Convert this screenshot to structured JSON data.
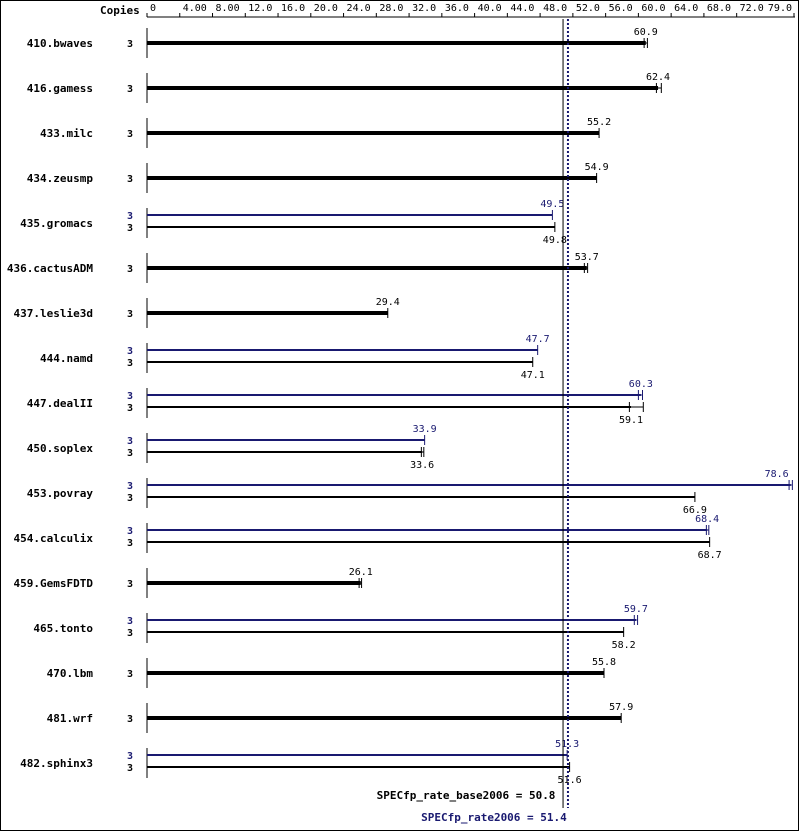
{
  "chart_data": {
    "type": "bar",
    "copies_header": "Copies",
    "x_ticks": [
      "0",
      "4.00",
      "8.00",
      "12.0",
      "16.0",
      "20.0",
      "24.0",
      "28.0",
      "32.0",
      "36.0",
      "40.0",
      "44.0",
      "48.0",
      "52.0",
      "56.0",
      "60.0",
      "64.0",
      "68.0",
      "72.0",
      "79.0"
    ],
    "xlim": [
      0,
      79.0
    ],
    "colors": {
      "base": "#000000",
      "peak": "#191970"
    },
    "benchmarks": [
      {
        "name": "410.bwaves",
        "base_copies": "3",
        "base": 60.9,
        "base_label": "60.9",
        "base_range": [
          60.7,
          61.1
        ]
      },
      {
        "name": "416.gamess",
        "base_copies": "3",
        "base": 62.4,
        "base_label": "62.4",
        "base_range": [
          62.2,
          62.8
        ]
      },
      {
        "name": "433.milc",
        "base_copies": "3",
        "base": 55.2,
        "base_label": "55.2"
      },
      {
        "name": "434.zeusmp",
        "base_copies": "3",
        "base": 54.9,
        "base_label": "54.9"
      },
      {
        "name": "435.gromacs",
        "peak_copies": "3",
        "peak": 49.5,
        "peak_label": "49.5",
        "base_copies": "3",
        "base": 49.8,
        "base_label": "49.8"
      },
      {
        "name": "436.cactusADM",
        "base_copies": "3",
        "base": 53.7,
        "base_label": "53.7",
        "base_range": [
          53.4,
          53.8
        ]
      },
      {
        "name": "437.leslie3d",
        "base_copies": "3",
        "base": 29.4,
        "base_label": "29.4"
      },
      {
        "name": "444.namd",
        "peak_copies": "3",
        "peak": 47.7,
        "peak_label": "47.7",
        "base_copies": "3",
        "base": 47.1,
        "base_label": "47.1"
      },
      {
        "name": "447.dealII",
        "peak_copies": "3",
        "peak": 60.3,
        "peak_label": "60.3",
        "peak_range": [
          60.0,
          60.5
        ],
        "base_copies": "3",
        "base": 59.1,
        "base_label": "59.1",
        "base_range": [
          58.9,
          60.6
        ]
      },
      {
        "name": "450.soplex",
        "peak_copies": "3",
        "peak": 33.9,
        "peak_label": "33.9",
        "base_copies": "3",
        "base": 33.6,
        "base_label": "33.6",
        "base_range": [
          33.5,
          33.8
        ]
      },
      {
        "name": "453.povray",
        "peak_copies": "3",
        "peak": 78.6,
        "peak_label": "78.6",
        "peak_range": [
          78.4,
          78.8
        ],
        "base_copies": "3",
        "base": 66.9,
        "base_label": "66.9"
      },
      {
        "name": "454.calculix",
        "peak_copies": "3",
        "peak": 68.4,
        "peak_label": "68.4",
        "peak_range": [
          68.3,
          68.6
        ],
        "base_copies": "3",
        "base": 68.7,
        "base_label": "68.7"
      },
      {
        "name": "459.GemsFDTD",
        "base_copies": "3",
        "base": 26.1,
        "base_label": "26.1",
        "base_range": [
          25.9,
          26.2
        ]
      },
      {
        "name": "465.tonto",
        "peak_copies": "3",
        "peak": 59.7,
        "peak_label": "59.7",
        "peak_range": [
          59.5,
          59.9
        ],
        "base_copies": "3",
        "base": 58.2,
        "base_label": "58.2"
      },
      {
        "name": "470.lbm",
        "base_copies": "3",
        "base": 55.8,
        "base_label": "55.8"
      },
      {
        "name": "481.wrf",
        "base_copies": "3",
        "base": 57.9,
        "base_label": "57.9"
      },
      {
        "name": "482.sphinx3",
        "peak_copies": "3",
        "peak": 51.3,
        "peak_label": "51.3",
        "base_copies": "3",
        "base": 51.6,
        "base_label": "51.6"
      }
    ],
    "reference_lines": [
      {
        "label": "SPECfp_rate_base2006 = 50.8",
        "value": 50.8,
        "style": "solid",
        "series": "base"
      },
      {
        "label": "SPECfp_rate2006 = 51.4",
        "value": 51.4,
        "style": "dotted",
        "series": "peak"
      }
    ]
  }
}
